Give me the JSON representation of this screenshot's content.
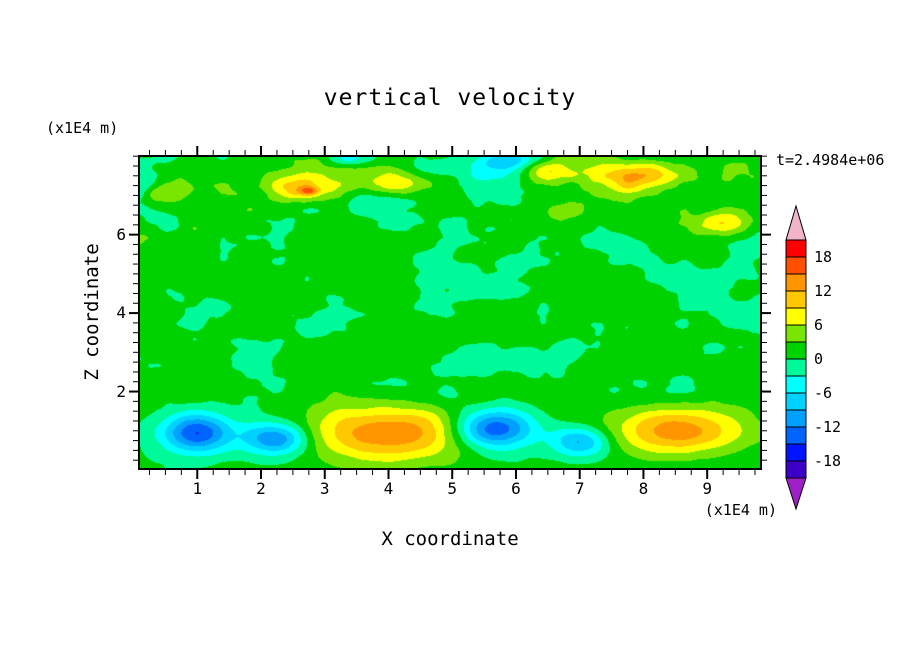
{
  "chart_data": {
    "type": "contour",
    "title": "vertical velocity",
    "time_label": "t=2.4984e+06",
    "xlabel": "X coordinate",
    "ylabel": "Z coordinate",
    "x_unit": "(x1E4 m)",
    "y_unit": "(x1E4 m)",
    "x_range": [
      0.07,
      9.86
    ],
    "z_range": [
      0.0,
      8.03
    ],
    "x_ticks": [
      1,
      2,
      3,
      4,
      5,
      6,
      7,
      8,
      9
    ],
    "z_ticks": [
      2,
      4,
      6
    ],
    "minor_tick_step": 0.25,
    "colorbar": {
      "tick_labels": [
        18,
        12,
        6,
        0,
        -6,
        -12,
        -18
      ],
      "levels": [
        -21,
        -18,
        -15,
        -12,
        -9,
        -6,
        -3,
        0,
        3,
        6,
        9,
        12,
        15,
        18,
        21
      ],
      "colors": [
        "#3c00c8",
        "#0014ff",
        "#0064ff",
        "#00a0ff",
        "#00d2ff",
        "#00ffff",
        "#00fa9a",
        "#00d200",
        "#78e600",
        "#ffff00",
        "#ffc800",
        "#ff9600",
        "#ff5000",
        "#ff0000"
      ],
      "under_color": "#a020c8",
      "over_color": "#f2b4c8"
    },
    "field_model": {
      "noise": {
        "seed": 11,
        "bias": 0.7,
        "wavelengths": [
          0.95,
          0.45,
          0.22
        ],
        "weights": [
          1.0,
          0.55,
          0.3
        ],
        "amp_bottom": 1.3,
        "amp_mid": 3.1,
        "amp_top": 5.6
      },
      "blobs": [
        {
          "x": 1.0,
          "z": 0.95,
          "rx": 0.55,
          "rz": 0.5,
          "amp": -16
        },
        {
          "x": 2.25,
          "z": 0.8,
          "rx": 0.5,
          "rz": 0.42,
          "amp": -14
        },
        {
          "x": 4.0,
          "z": 0.95,
          "rx": 1.35,
          "rz": 0.7,
          "amp": 14
        },
        {
          "x": 5.65,
          "z": 1.05,
          "rx": 0.62,
          "rz": 0.5,
          "amp": -17
        },
        {
          "x": 7.0,
          "z": 0.72,
          "rx": 0.45,
          "rz": 0.38,
          "amp": -11
        },
        {
          "x": 8.5,
          "z": 1.0,
          "rx": 1.05,
          "rz": 0.6,
          "amp": 13
        },
        {
          "x": 2.6,
          "z": 7.2,
          "rx": 0.5,
          "rz": 0.32,
          "amp": 8
        },
        {
          "x": 2.75,
          "z": 7.1,
          "rx": 0.16,
          "rz": 0.12,
          "amp": 9
        },
        {
          "x": 4.15,
          "z": 7.35,
          "rx": 0.6,
          "rz": 0.3,
          "amp": 7
        },
        {
          "x": 6.6,
          "z": 7.6,
          "rx": 0.4,
          "rz": 0.28,
          "amp": 7
        },
        {
          "x": 7.95,
          "z": 7.5,
          "rx": 0.75,
          "rz": 0.35,
          "amp": 9
        },
        {
          "x": 9.3,
          "z": 6.3,
          "rx": 0.4,
          "rz": 0.3,
          "amp": 7
        },
        {
          "x": 5.85,
          "z": 7.9,
          "rx": 0.45,
          "rz": 0.25,
          "amp": -7
        },
        {
          "x": 3.35,
          "z": 7.95,
          "rx": 0.4,
          "rz": 0.2,
          "amp": -6
        },
        {
          "x": 0.45,
          "z": 7.0,
          "rx": 0.35,
          "rz": 0.3,
          "amp": 6
        }
      ]
    }
  }
}
